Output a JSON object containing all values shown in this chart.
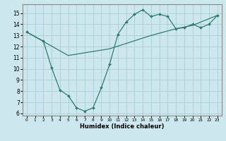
{
  "xlabel": "Humidex (Indice chaleur)",
  "bg_color": "#cce8ee",
  "grid_color": "#aacdd4",
  "line_color": "#2e7d6e",
  "xlim": [
    -0.5,
    23.5
  ],
  "ylim": [
    5.8,
    15.8
  ],
  "xticks": [
    0,
    1,
    2,
    3,
    4,
    5,
    6,
    7,
    8,
    9,
    10,
    11,
    12,
    13,
    14,
    15,
    16,
    17,
    18,
    19,
    20,
    21,
    22,
    23
  ],
  "yticks": [
    6,
    7,
    8,
    9,
    10,
    11,
    12,
    13,
    14,
    15
  ],
  "line1_x": [
    0,
    2,
    3,
    4,
    5,
    6,
    7,
    8,
    9,
    10,
    11,
    12,
    13,
    14,
    15,
    16,
    17,
    18,
    19,
    20,
    21,
    22,
    23
  ],
  "line1_y": [
    13.3,
    12.5,
    10.1,
    8.1,
    7.6,
    6.5,
    6.2,
    6.5,
    8.3,
    10.4,
    13.1,
    14.2,
    14.9,
    15.3,
    14.7,
    14.9,
    14.7,
    13.6,
    13.7,
    14.0,
    13.7,
    14.0,
    14.8
  ],
  "line2_x": [
    0,
    5,
    10,
    15,
    18,
    20,
    23
  ],
  "line2_y": [
    13.3,
    11.2,
    11.8,
    13.0,
    13.6,
    13.9,
    14.8
  ]
}
